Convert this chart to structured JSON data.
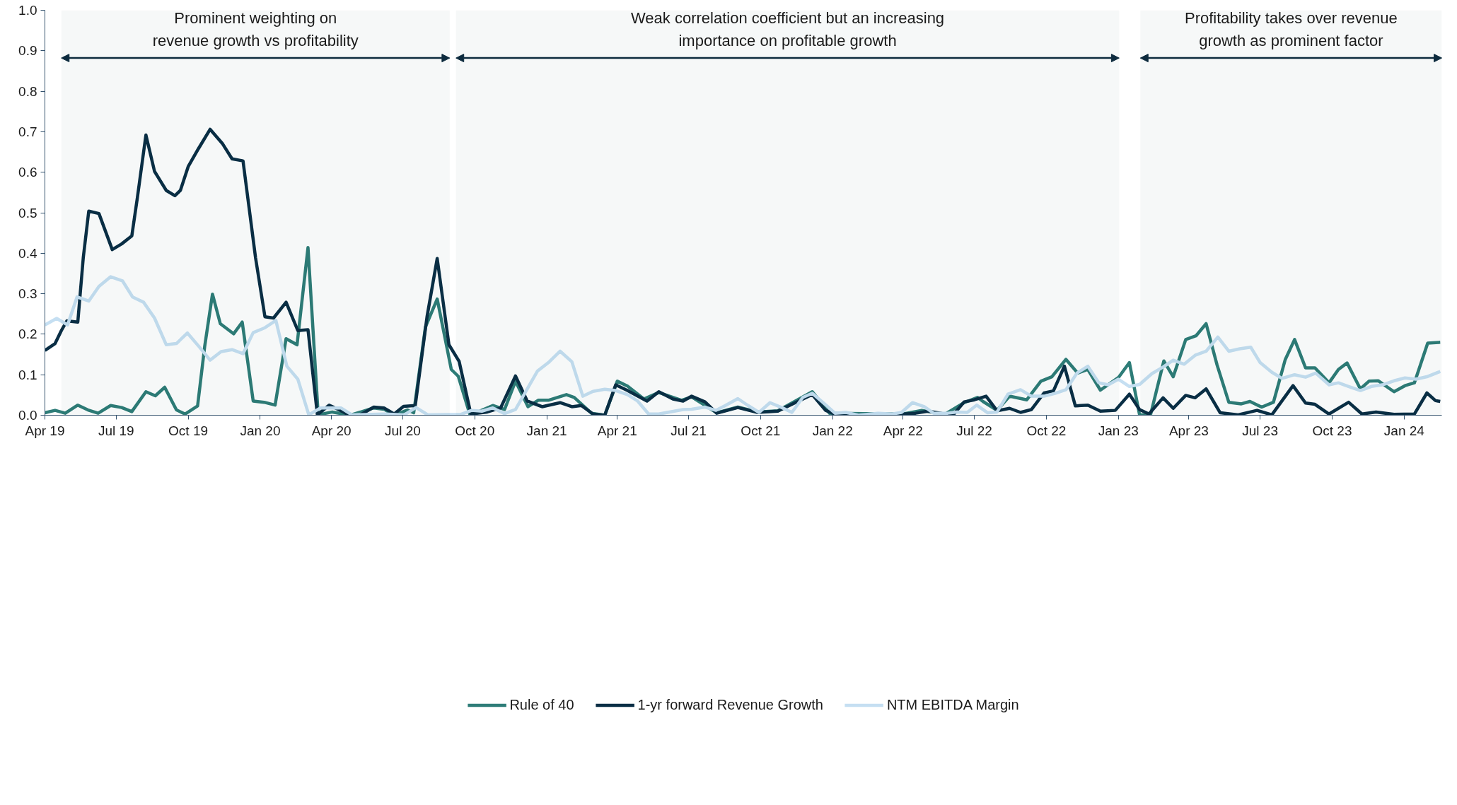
{
  "chart_data": {
    "type": "line",
    "xlim": [
      "2019-04-01",
      "2024-02-18"
    ],
    "ylim": [
      0,
      1.0
    ],
    "xticks": [
      {
        "value": "2019-04-01",
        "label": "Apr 19"
      },
      {
        "value": "2019-07-01",
        "label": "Jul 19"
      },
      {
        "value": "2019-10-01",
        "label": "Oct 19"
      },
      {
        "value": "2020-01-01",
        "label": "Jan 20"
      },
      {
        "value": "2020-04-01",
        "label": "Apr 20"
      },
      {
        "value": "2020-07-01",
        "label": "Jul 20"
      },
      {
        "value": "2020-10-01",
        "label": "Oct 20"
      },
      {
        "value": "2021-01-01",
        "label": "Jan 21"
      },
      {
        "value": "2021-04-01",
        "label": "Apr 21"
      },
      {
        "value": "2021-07-01",
        "label": "Jul 21"
      },
      {
        "value": "2021-10-01",
        "label": "Oct 21"
      },
      {
        "value": "2022-01-01",
        "label": "Jan 22"
      },
      {
        "value": "2022-04-01",
        "label": "Apr 22"
      },
      {
        "value": "2022-07-01",
        "label": "Jul 22"
      },
      {
        "value": "2022-10-01",
        "label": "Oct 22"
      },
      {
        "value": "2023-01-01",
        "label": "Jan 23"
      },
      {
        "value": "2023-04-01",
        "label": "Apr 23"
      },
      {
        "value": "2023-07-01",
        "label": "Jul 23"
      },
      {
        "value": "2023-10-01",
        "label": "Oct 23"
      },
      {
        "value": "2024-01-01",
        "label": "Jan 24"
      }
    ],
    "yticks": [
      {
        "value": 0,
        "label": "0.0"
      },
      0.1,
      0.2,
      0.3,
      0.4,
      0.5,
      0.6,
      0.7,
      0.8,
      0.9,
      {
        "value": 1.0,
        "label": "1.0"
      }
    ],
    "legend": "bottom",
    "bands": [
      {
        "axis": "x",
        "from": "2019-04-22",
        "to": "2020-08-30",
        "label": "Prominent weighting on\nrevenue growth vs profitability",
        "color": "#0d2b3e"
      },
      {
        "axis": "x",
        "from": "2020-09-07",
        "to": "2023-01-02",
        "label": "Weak correlation coefficient but an increasing\nimportance on profitable growth",
        "color": "#0d2b3e"
      },
      {
        "axis": "x",
        "from": "2023-01-29",
        "to": "2024-02-18",
        "label": "Profitability takes over revenue\ngrowth as prominent factor",
        "color": "#0d2b3e"
      }
    ],
    "series": [
      {
        "name": "Rule of 40",
        "color": "#2e7d78",
        "x": [
          "2019-04-01",
          "2019-04-14",
          "2019-04-27",
          "2019-05-13",
          "2019-05-26",
          "2019-06-08",
          "2019-06-24",
          "2019-07-08",
          "2019-07-21",
          "2019-08-08",
          "2019-08-20",
          "2019-09-01",
          "2019-09-16",
          "2019-09-27",
          "2019-10-13",
          "2019-10-22",
          "2019-11-01",
          "2019-11-11",
          "2019-11-28",
          "2019-12-09",
          "2019-12-23",
          "2020-01-06",
          "2020-01-20",
          "2020-02-03",
          "2020-02-17",
          "2020-03-02",
          "2020-03-15",
          "2020-04-02",
          "2020-04-25",
          "2020-05-25",
          "2020-06-07",
          "2020-06-20",
          "2020-07-07",
          "2020-07-15",
          "2020-07-30",
          "2020-08-14",
          "2020-09-01",
          "2020-09-10",
          "2020-09-25",
          "2020-10-24",
          "2020-11-08",
          "2020-11-22",
          "2020-12-08",
          "2020-12-21",
          "2021-01-03",
          "2021-01-26",
          "2021-02-05",
          "2021-02-27",
          "2021-03-16",
          "2021-04-01",
          "2021-04-14",
          "2021-05-05",
          "2021-05-24",
          "2021-06-22",
          "2021-07-05",
          "2021-08-06",
          "2021-09-02",
          "2021-09-27",
          "2021-10-23",
          "2021-12-06",
          "2021-12-28",
          "2022-04-01",
          "2022-04-25",
          "2022-05-24",
          "2022-06-18",
          "2022-07-05",
          "2022-07-12",
          "2022-07-30",
          "2022-08-15",
          "2022-09-06",
          "2022-09-24",
          "2022-10-08",
          "2022-10-26",
          "2022-11-10",
          "2022-11-23",
          "2022-12-09",
          "2023-01-01",
          "2023-01-15",
          "2023-01-28",
          "2023-02-11",
          "2023-02-28",
          "2023-03-12",
          "2023-03-28",
          "2023-04-10",
          "2023-04-23",
          "2023-05-07",
          "2023-05-22",
          "2023-06-07",
          "2023-06-18",
          "2023-07-03",
          "2023-07-18",
          "2023-08-02",
          "2023-08-14",
          "2023-08-28",
          "2023-09-09",
          "2023-09-27",
          "2023-10-09",
          "2023-10-20",
          "2023-11-06",
          "2023-11-17",
          "2023-11-29",
          "2023-12-19",
          "2024-01-02",
          "2024-01-14",
          "2024-01-31",
          "2024-02-16"
        ],
        "values": [
          0.006,
          0.012,
          0.005,
          0.025,
          0.013,
          0.005,
          0.024,
          0.019,
          0.009,
          0.058,
          0.048,
          0.069,
          0.013,
          0.003,
          0.023,
          0.169,
          0.299,
          0.226,
          0.201,
          0.23,
          0.035,
          0.032,
          0.025,
          0.189,
          0.174,
          0.414,
          0.001,
          0.008,
          0,
          0.018,
          0.015,
          0,
          0.013,
          0.006,
          0.218,
          0.287,
          0.113,
          0.096,
          0,
          0.024,
          0.014,
          0.084,
          0.021,
          0.037,
          0.037,
          0.051,
          0.044,
          0.005,
          0,
          0.084,
          0.072,
          0.04,
          0.056,
          0.037,
          0.045,
          0.006,
          0.02,
          0.008,
          0.011,
          0.058,
          0.005,
          0.003,
          0.012,
          0.002,
          0.031,
          0.044,
          0.034,
          0.012,
          0.047,
          0.038,
          0.084,
          0.095,
          0.138,
          0.104,
          0.113,
          0.062,
          0.093,
          0.13,
          0.001,
          0.001,
          0.134,
          0.095,
          0.187,
          0.196,
          0.226,
          0.124,
          0.032,
          0.028,
          0.034,
          0.02,
          0.032,
          0.137,
          0.187,
          0.117,
          0.117,
          0.08,
          0.113,
          0.129,
          0.065,
          0.084,
          0.085,
          0.058,
          0.073,
          0.08,
          0.178,
          0.18
        ]
      },
      {
        "name": "1-yr forward Revenue Growth",
        "color": "#0a2e45",
        "x": [
          "2019-04-01",
          "2019-04-14",
          "2019-04-22",
          "2019-04-29",
          "2019-05-13",
          "2019-05-20",
          "2019-05-27",
          "2019-06-09",
          "2019-06-26",
          "2019-07-08",
          "2019-07-21",
          "2019-07-28",
          "2019-08-08",
          "2019-08-19",
          "2019-09-03",
          "2019-09-14",
          "2019-09-21",
          "2019-10-01",
          "2019-10-14",
          "2019-10-29",
          "2019-11-14",
          "2019-11-26",
          "2019-12-10",
          "2019-12-26",
          "2020-01-07",
          "2020-01-18",
          "2020-02-03",
          "2020-02-18",
          "2020-03-02",
          "2020-03-14",
          "2020-03-29",
          "2020-04-11",
          "2020-04-24",
          "2020-05-07",
          "2020-05-25",
          "2020-06-07",
          "2020-06-20",
          "2020-07-02",
          "2020-07-17",
          "2020-08-01",
          "2020-08-14",
          "2020-08-29",
          "2020-09-11",
          "2020-09-26",
          "2020-10-17",
          "2020-11-03",
          "2020-11-22",
          "2020-12-07",
          "2020-12-26",
          "2021-01-18",
          "2021-02-02",
          "2021-02-14",
          "2021-03-01",
          "2021-03-16",
          "2021-03-30",
          "2021-04-14",
          "2021-05-09",
          "2021-05-24",
          "2021-06-11",
          "2021-06-24",
          "2021-07-05",
          "2021-07-22",
          "2021-08-06",
          "2021-09-02",
          "2021-09-27",
          "2021-10-23",
          "2021-11-11",
          "2021-12-06",
          "2021-12-23",
          "2022-01-04",
          "2022-02-03",
          "2022-04-01",
          "2022-04-17",
          "2022-05-03",
          "2022-05-24",
          "2022-06-05",
          "2022-06-18",
          "2022-07-01",
          "2022-07-16",
          "2022-07-30",
          "2022-08-15",
          "2022-08-29",
          "2022-09-12",
          "2022-09-28",
          "2022-10-10",
          "2022-10-24",
          "2022-11-07",
          "2022-11-23",
          "2022-12-09",
          "2022-12-28",
          "2023-01-15",
          "2023-01-28",
          "2023-02-09",
          "2023-02-27",
          "2023-03-12",
          "2023-03-28",
          "2023-04-09",
          "2023-04-23",
          "2023-05-11",
          "2023-06-03",
          "2023-06-27",
          "2023-07-16",
          "2023-08-12",
          "2023-08-28",
          "2023-09-09",
          "2023-09-27",
          "2023-10-22",
          "2023-11-08",
          "2023-11-26",
          "2023-12-19",
          "2024-01-14",
          "2024-01-30",
          "2024-02-10",
          "2024-02-16"
        ],
        "values": [
          0.16,
          0.177,
          0.209,
          0.233,
          0.23,
          0.389,
          0.504,
          0.498,
          0.409,
          0.423,
          0.443,
          0.536,
          0.692,
          0.602,
          0.555,
          0.542,
          0.555,
          0.614,
          0.658,
          0.706,
          0.67,
          0.633,
          0.628,
          0.389,
          0.243,
          0.24,
          0.279,
          0.209,
          0.211,
          0.001,
          0.025,
          0.013,
          0,
          0,
          0.02,
          0.018,
          0.003,
          0.022,
          0.024,
          0.243,
          0.387,
          0.174,
          0.133,
          0.003,
          0.008,
          0.018,
          0.097,
          0.035,
          0.021,
          0.031,
          0.021,
          0.024,
          0.003,
          0,
          0.075,
          0.061,
          0.035,
          0.058,
          0.04,
          0.035,
          0.047,
          0.033,
          0.005,
          0.019,
          0.007,
          0.01,
          0.028,
          0.051,
          0.012,
          0.003,
          0,
          0.003,
          0.005,
          0.01,
          0.003,
          0.003,
          0.033,
          0.038,
          0.047,
          0.011,
          0.017,
          0.007,
          0.014,
          0.055,
          0.06,
          0.121,
          0.023,
          0.025,
          0.01,
          0.012,
          0.052,
          0.014,
          0.003,
          0.043,
          0.017,
          0.049,
          0.043,
          0.065,
          0.006,
          0.001,
          0.012,
          0.001,
          0.073,
          0.03,
          0.027,
          0.003,
          0.032,
          0.003,
          0.008,
          0.002,
          0.003,
          0.055,
          0.036,
          0.034
        ]
      },
      {
        "name": "NTM EBITDA Margin",
        "color": "#c5dff2",
        "x": [
          "2019-04-01",
          "2019-04-16",
          "2019-04-30",
          "2019-05-12",
          "2019-05-27",
          "2019-06-09",
          "2019-06-24",
          "2019-07-09",
          "2019-07-22",
          "2019-08-05",
          "2019-08-19",
          "2019-09-03",
          "2019-09-16",
          "2019-09-30",
          "2019-10-15",
          "2019-10-29",
          "2019-11-12",
          "2019-11-26",
          "2019-12-10",
          "2019-12-23",
          "2020-01-07",
          "2020-01-21",
          "2020-02-04",
          "2020-02-18",
          "2020-03-03",
          "2020-03-18",
          "2020-03-31",
          "2020-04-13",
          "2020-04-27",
          "2020-06-08",
          "2020-07-03",
          "2020-07-18",
          "2020-08-02",
          "2020-09-13",
          "2020-09-27",
          "2020-10-10",
          "2020-10-24",
          "2020-11-08",
          "2020-11-22",
          "2020-12-20",
          "2021-01-03",
          "2021-01-18",
          "2021-02-02",
          "2021-02-16",
          "2021-03-01",
          "2021-03-16",
          "2021-03-30",
          "2021-04-14",
          "2021-04-27",
          "2021-05-11",
          "2021-05-24",
          "2021-06-24",
          "2021-07-05",
          "2021-07-22",
          "2021-08-05",
          "2021-08-17",
          "2021-09-02",
          "2021-09-15",
          "2021-09-29",
          "2021-10-13",
          "2021-10-28",
          "2021-11-10",
          "2021-11-24",
          "2021-12-06",
          "2021-12-23",
          "2022-01-04",
          "2022-01-18",
          "2022-02-03",
          "2022-02-28",
          "2022-03-18",
          "2022-03-30",
          "2022-04-13",
          "2022-04-28",
          "2022-05-10",
          "2022-05-28",
          "2022-06-09",
          "2022-06-22",
          "2022-07-04",
          "2022-07-18",
          "2022-07-30",
          "2022-08-13",
          "2022-08-29",
          "2022-09-12",
          "2022-09-28",
          "2022-10-12",
          "2022-10-26",
          "2022-11-09",
          "2022-11-23",
          "2022-12-07",
          "2022-12-19",
          "2023-01-01",
          "2023-01-15",
          "2023-01-28",
          "2023-02-13",
          "2023-02-27",
          "2023-03-12",
          "2023-03-26",
          "2023-04-09",
          "2023-04-23",
          "2023-05-08",
          "2023-05-22",
          "2023-06-05",
          "2023-06-19",
          "2023-07-01",
          "2023-07-16",
          "2023-07-29",
          "2023-08-14",
          "2023-08-28",
          "2023-09-10",
          "2023-09-27",
          "2023-10-09",
          "2023-10-22",
          "2023-11-06",
          "2023-11-20",
          "2023-12-04",
          "2023-12-19",
          "2024-01-02",
          "2024-01-16",
          "2024-01-30",
          "2024-02-16"
        ],
        "values": [
          0.223,
          0.239,
          0.223,
          0.292,
          0.282,
          0.318,
          0.342,
          0.332,
          0.292,
          0.279,
          0.24,
          0.174,
          0.177,
          0.203,
          0.169,
          0.136,
          0.157,
          0.162,
          0.152,
          0.204,
          0.216,
          0.234,
          0.121,
          0.089,
          0.001,
          0.018,
          0.018,
          0.018,
          0.001,
          0.003,
          0.001,
          0.019,
          0.001,
          0.002,
          0.012,
          0.01,
          0.018,
          0.004,
          0.014,
          0.109,
          0.13,
          0.158,
          0.132,
          0.047,
          0.059,
          0.064,
          0.061,
          0.051,
          0.035,
          0.003,
          0.003,
          0.014,
          0.015,
          0.02,
          0.012,
          0.024,
          0.041,
          0.024,
          0.007,
          0.031,
          0.019,
          0.007,
          0.044,
          0.054,
          0.026,
          0.005,
          0.007,
          0,
          0.005,
          0.003,
          0.007,
          0.031,
          0.021,
          0.005,
          0.005,
          0.008,
          0.007,
          0.025,
          0.006,
          0.008,
          0.052,
          0.063,
          0.047,
          0.047,
          0.054,
          0.063,
          0.104,
          0.121,
          0.08,
          0.075,
          0.089,
          0.071,
          0.076,
          0.103,
          0.119,
          0.136,
          0.126,
          0.148,
          0.158,
          0.193,
          0.158,
          0.164,
          0.168,
          0.13,
          0.106,
          0.091,
          0.1,
          0.094,
          0.104,
          0.075,
          0.08,
          0.071,
          0.061,
          0.071,
          0.075,
          0.085,
          0.092,
          0.089,
          0.095,
          0.108
        ]
      }
    ]
  }
}
